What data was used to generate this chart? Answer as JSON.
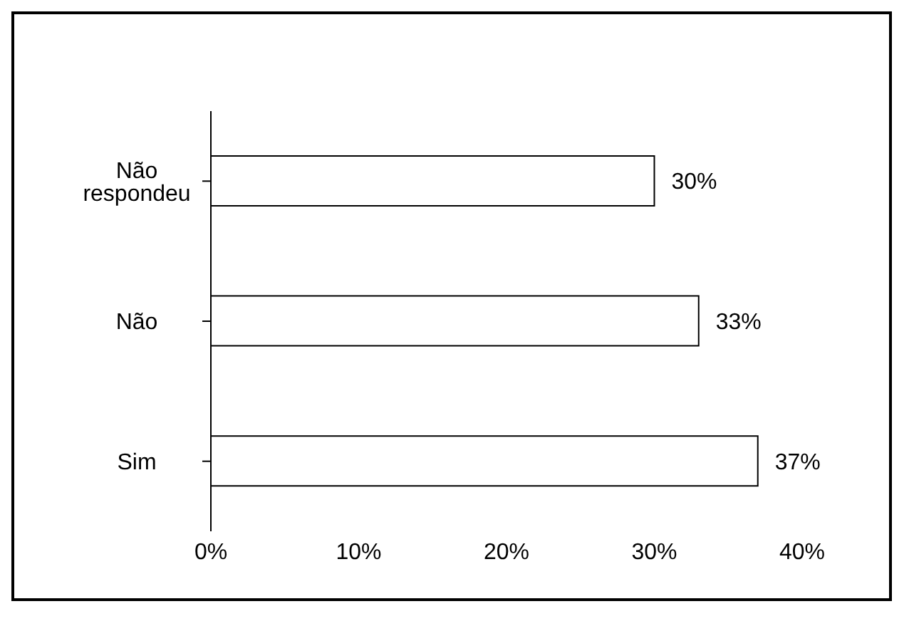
{
  "chart_data": {
    "type": "bar",
    "orientation": "horizontal",
    "categories": [
      "Não respondeu",
      "Não",
      "Sim"
    ],
    "values": [
      30,
      33,
      37
    ],
    "value_labels": [
      "30%",
      "33%",
      "37%"
    ],
    "color": "#ffffff",
    "xlim": [
      0,
      40
    ],
    "xticks": [
      {
        "value": 0,
        "label": "0%"
      },
      {
        "value": 10,
        "label": "10%"
      },
      {
        "value": 20,
        "label": "20%"
      },
      {
        "value": 30,
        "label": "30%"
      },
      {
        "value": 40,
        "label": "40%"
      }
    ],
    "grid": false,
    "legend": false
  }
}
